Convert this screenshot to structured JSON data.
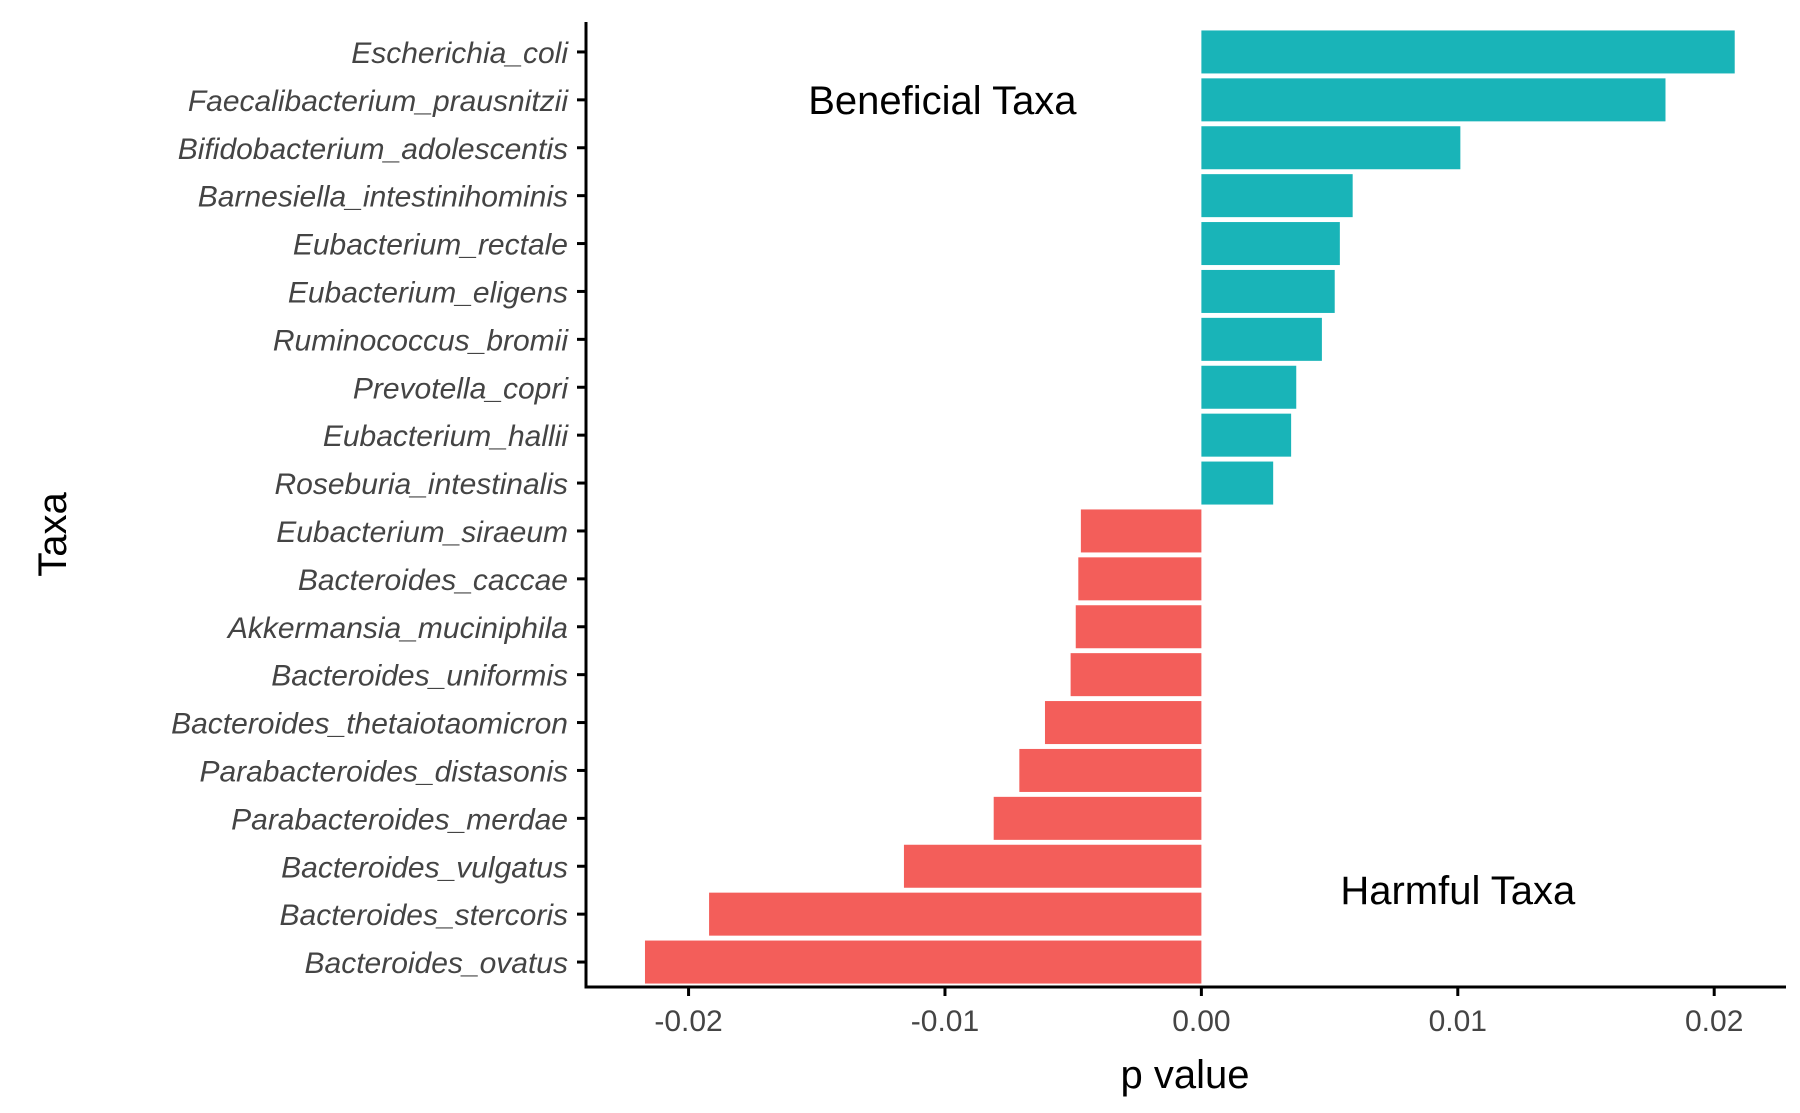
{
  "chart_data": {
    "type": "bar",
    "orientation": "horizontal",
    "xlabel": "p value",
    "ylabel": "Taxa",
    "xlim": [
      -0.024,
      0.0228
    ],
    "xticks": [
      -0.02,
      -0.01,
      0.0,
      0.01,
      0.02
    ],
    "xtick_labels": [
      "-0.02",
      "-0.01",
      "0.00",
      "0.01",
      "0.02"
    ],
    "grid": false,
    "categories": [
      "Escherichia_coli",
      "Faecalibacterium_prausnitzii",
      "Bifidobacterium_adolescentis",
      "Barnesiella_intestinihominis",
      "Eubacterium_rectale",
      "Eubacterium_eligens",
      "Ruminococcus_bromii",
      "Prevotella_copri",
      "Eubacterium_hallii",
      "Roseburia_intestinalis",
      "Eubacterium_siraeum",
      "Bacteroides_caccae",
      "Akkermansia_muciniphila",
      "Bacteroides_uniformis",
      "Bacteroides_thetaiotaomicron",
      "Parabacteroides_distasonis",
      "Parabacteroides_merdae",
      "Bacteroides_vulgatus",
      "Bacteroides_stercoris",
      "Bacteroides_ovatus"
    ],
    "values": [
      0.0208,
      0.0181,
      0.0101,
      0.0059,
      0.0054,
      0.0052,
      0.0047,
      0.0037,
      0.0035,
      0.0028,
      -0.0047,
      -0.0048,
      -0.0049,
      -0.0051,
      -0.0061,
      -0.0071,
      -0.0081,
      -0.0116,
      -0.0192,
      -0.0217
    ],
    "colors": {
      "positive": "#19B4B8",
      "negative": "#F35E5A"
    },
    "annotations": [
      {
        "text": "Beneficial Taxa",
        "x": -0.0101,
        "category": "Faecalibacterium_prausnitzii"
      },
      {
        "text": "Harmful Taxa",
        "x": 0.01,
        "category": "Bacteroides_vulgatus",
        "offset": 0.5
      }
    ]
  }
}
